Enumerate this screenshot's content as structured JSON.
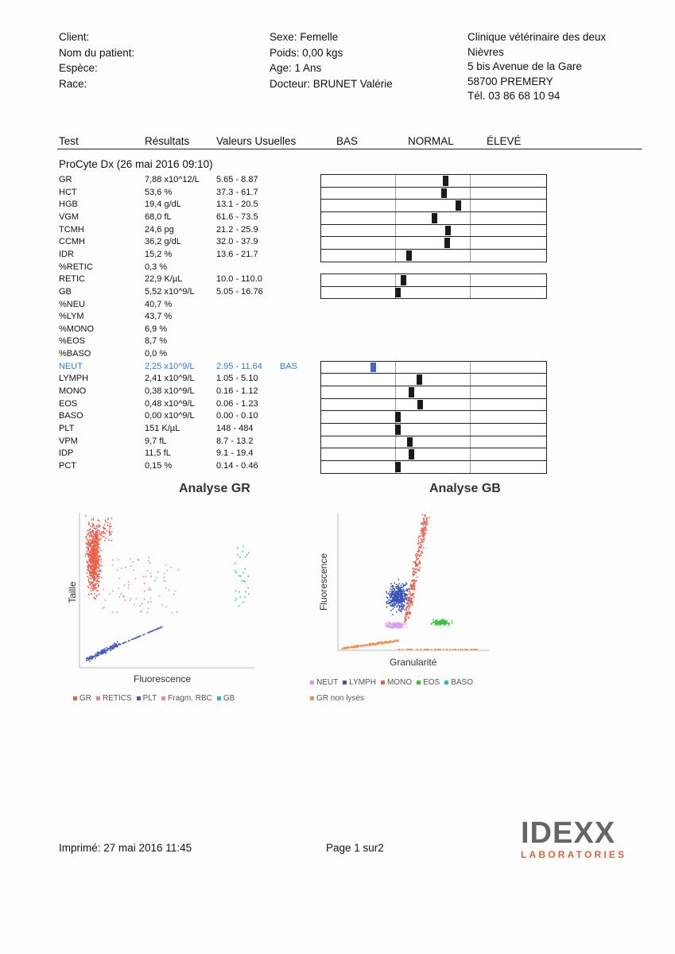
{
  "header": {
    "patient": [
      "Client:",
      "Nom du patient:",
      "Espèce:",
      "Race:"
    ],
    "animal": [
      "Sexe: Femelle",
      "Poids: 0,00 kgs",
      "Age: 1 Ans",
      "Docteur: BRUNET Valérie"
    ],
    "clinic": [
      "Clinique vétérinaire des deux",
      "Nièvres",
      "5 bis Avenue de la Gare",
      "58700 PREMERY",
      "Tél. 03 86 68 10 94"
    ]
  },
  "table": {
    "columns": [
      "Test",
      "Résultats",
      "Valeurs Usuelles",
      "BAS",
      "NORMAL",
      "ÉLEVÉ"
    ],
    "section": "ProCyte Dx (26 mai 2016 09:10)",
    "rows": [
      [
        "GR",
        "7,88 x10^12/L",
        "5.65 - 8.87"
      ],
      [
        "HCT",
        "53,6 %",
        "37.3 - 61.7"
      ],
      [
        "HGB",
        "19,4 g/dL",
        "13.1 - 20.5"
      ],
      [
        "VGM",
        "68,0 fL",
        "61.6 - 73.5"
      ],
      [
        "TCMH",
        "24,6 pg",
        "21.2 - 25.9"
      ],
      [
        "CCMH",
        "36,2 g/dL",
        "32.0 - 37.9"
      ],
      [
        "IDR",
        "15,2 %",
        "13.6 - 21.7"
      ],
      [
        "%RETIC",
        "0,3 %"
      ],
      [
        "RETIC",
        "22,9 K/µL",
        "10.0 - 110.0"
      ],
      [
        "GB",
        "5,52 x10^9/L",
        "5.05 - 16.76"
      ],
      [
        "%NEU",
        "40,7 %"
      ],
      [
        "%LYM",
        "43,7 %"
      ],
      [
        "%MONO",
        "6,9 %"
      ],
      [
        "%EOS",
        "8,7 %"
      ],
      [
        "%BASO",
        "0,0 %"
      ],
      [
        "NEUT",
        "2,25 x10^9/L",
        "2.95 - 11.64",
        "BAS"
      ],
      [
        "LYMPH",
        "2,41 x10^9/L",
        "1.05 - 5.10"
      ],
      [
        "MONO",
        "0,38 x10^9/L",
        "0.16 - 1.12"
      ],
      [
        "EOS",
        "0,48 x10^9/L",
        "0.06 - 1.23"
      ],
      [
        "BASO",
        "0,00 x10^9/L",
        "0.00 - 0.10"
      ],
      [
        "PLT",
        "151 K/µL",
        "148 - 484"
      ],
      [
        "VPM",
        "9,7 fL",
        "8.7 - 13.2"
      ],
      [
        "IDP",
        "11,5 fL",
        "9.1 - 19.4"
      ],
      [
        "PCT",
        "0,15 %",
        "0.14 - 0.46"
      ]
    ]
  },
  "charts": [
    {
      "title": "Analyse GR",
      "ylabel": "Taille",
      "xlabel": "Fluorescence",
      "legend": [
        "GR",
        "RETICS",
        "PLT",
        "Fragm. RBC",
        "GB"
      ]
    },
    {
      "title": "Analyse GB",
      "ylabel": "Fluorescence",
      "xlabel": "Granularité",
      "legend": [
        "NEUT",
        "LYMPH",
        "MONO",
        "EOS",
        "BASO",
        "GR non lysés"
      ]
    }
  ],
  "footer": {
    "printed": "Imprimé: 27 mai 2016 11:45",
    "page": "Page 1 sur2",
    "logo": "IDEXX",
    "logo_sub": "LABORATORIES"
  }
}
